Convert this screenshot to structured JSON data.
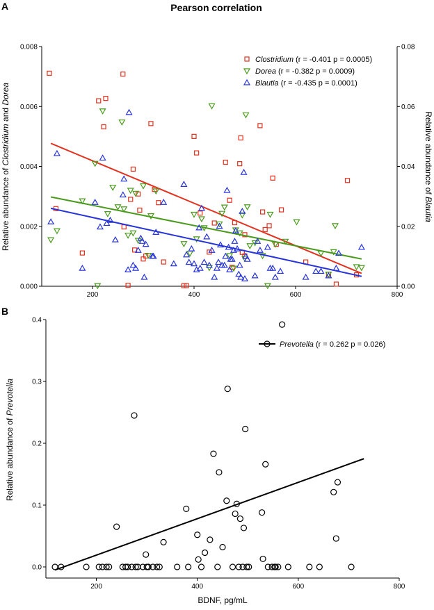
{
  "title": "Pearson correlation",
  "colors": {
    "clostridium": "#e3321f",
    "dorea": "#4a9a1c",
    "blautia": "#2734d8",
    "prevotella": "#000000"
  },
  "chart_data": [
    {
      "panel_label": "A",
      "type": "scatter",
      "xlim": [
        100,
        800
      ],
      "xticks": [
        200,
        400,
        600,
        800
      ],
      "ylim": [
        0,
        0.008
      ],
      "yticks": [
        "0.000",
        "0.002",
        "0.004",
        "0.006",
        "0.008"
      ],
      "ylim_right": [
        0,
        0.08
      ],
      "yticks_right": [
        "0.00",
        "0.02",
        "0.04",
        "0.06",
        "0.08"
      ],
      "ylabel_parts": [
        "Relative abundance of ",
        "Clostridium",
        " and ",
        "Dorea"
      ],
      "ylabel_right_parts": [
        "Relative abundance of ",
        "Blautia"
      ],
      "legend_position": "top-right",
      "series": [
        {
          "name": "Clostridium",
          "stats": "(r = -0.401  p = 0.0005)",
          "marker": "square",
          "axis": "left",
          "fit": [
            [
              118,
              0.00477
            ],
            [
              730,
              0.00043
            ]
          ],
          "points": [
            [
              115,
              0.00711
            ],
            [
              128,
              0.00259
            ],
            [
              180,
              0.00111
            ],
            [
              212,
              0.00619
            ],
            [
              222,
              0.00532
            ],
            [
              226,
              0.00627
            ],
            [
              260,
              0.00708
            ],
            [
              262,
              0.00198
            ],
            [
              270,
              3e-05
            ],
            [
              275,
              0.0029
            ],
            [
              280,
              0.00391
            ],
            [
              283,
              0.00121
            ],
            [
              290,
              0.00308
            ],
            [
              293,
              0.00254
            ],
            [
              300,
              0.00091
            ],
            [
              305,
              0.00101
            ],
            [
              315,
              0.00543
            ],
            [
              322,
              0.00323
            ],
            [
              330,
              0.00279
            ],
            [
              340,
              0.00081
            ],
            [
              380,
              2e-05
            ],
            [
              385,
              2e-05
            ],
            [
              400,
              0.005
            ],
            [
              405,
              0.00445
            ],
            [
              412,
              0.00244
            ],
            [
              430,
              0.00114
            ],
            [
              440,
              0.00211
            ],
            [
              462,
              0.00414
            ],
            [
              470,
              0.00287
            ],
            [
              475,
              0.00063
            ],
            [
              480,
              0.00212
            ],
            [
              490,
              0.00409
            ],
            [
              492,
              0.00495
            ],
            [
              495,
              0.00113
            ],
            [
              500,
              0.00172
            ],
            [
              500,
              0.00101
            ],
            [
              530,
              0.00536
            ],
            [
              535,
              0.00248
            ],
            [
              540,
              0.00189
            ],
            [
              548,
              0.00202
            ],
            [
              555,
              0.00361
            ],
            [
              562,
              0.0014
            ],
            [
              572,
              0.00255
            ],
            [
              620,
              0.00081
            ],
            [
              665,
              0.0004
            ],
            [
              680,
              7e-05
            ],
            [
              702,
              0.00353
            ],
            [
              720,
              0.00038
            ]
          ]
        },
        {
          "name": "Dorea",
          "stats": "(r = -0.382   p = 0.0009)",
          "marker": "triangle-down",
          "axis": "left",
          "fit": [
            [
              118,
              0.00298
            ],
            [
              730,
              0.00091
            ]
          ],
          "points": [
            [
              118,
              0.00155
            ],
            [
              130,
              0.00185
            ],
            [
              180,
              0.00285
            ],
            [
              205,
              0.0041
            ],
            [
              210,
              2e-05
            ],
            [
              220,
              0.00585
            ],
            [
              230,
              0.00242
            ],
            [
              240,
              0.0033
            ],
            [
              250,
              0.00265
            ],
            [
              258,
              0.00548
            ],
            [
              262,
              0.00258
            ],
            [
              270,
              0.0017
            ],
            [
              275,
              0.0032
            ],
            [
              280,
              0.00178
            ],
            [
              285,
              0.0031
            ],
            [
              290,
              0.00153
            ],
            [
              300,
              0.00335
            ],
            [
              310,
              0.00103
            ],
            [
              315,
              0.00235
            ],
            [
              325,
              0.00318
            ],
            [
              380,
              0.00142
            ],
            [
              392,
              0.0011
            ],
            [
              400,
              0.0024
            ],
            [
              405,
              0.00158
            ],
            [
              415,
              0.00225
            ],
            [
              420,
              0.00195
            ],
            [
              430,
              0.00062
            ],
            [
              435,
              0.00602
            ],
            [
              450,
              0.00208
            ],
            [
              455,
              0.00243
            ],
            [
              460,
              0.00264
            ],
            [
              470,
              0.00102
            ],
            [
              478,
              0.0006
            ],
            [
              482,
              0.00188
            ],
            [
              490,
              0.00178
            ],
            [
              495,
              0.00238
            ],
            [
              500,
              0.00093
            ],
            [
              502,
              0.00572
            ],
            [
              505,
              0.00265
            ],
            [
              510,
              0.00135
            ],
            [
              520,
              0.00145
            ],
            [
              535,
              0.00102
            ],
            [
              545,
              2e-05
            ],
            [
              550,
              0.0024
            ],
            [
              560,
              0.0014
            ],
            [
              580,
              0.0015
            ],
            [
              602,
              0.00215
            ],
            [
              650,
              0.0011
            ],
            [
              665,
              0.0004
            ],
            [
              675,
              0.00115
            ],
            [
              678,
              0.00202
            ],
            [
              720,
              0.00065
            ],
            [
              730,
              0.00062
            ]
          ]
        },
        {
          "name": "Blautia",
          "stats": "(r = -0.435  p = 0.0001)",
          "marker": "triangle-up",
          "axis": "right",
          "fit": [
            [
              118,
              0.026
            ],
            [
              730,
              0.0033
            ]
          ],
          "points": [
            [
              118,
              0.0215
            ],
            [
              130,
              0.0443
            ],
            [
              180,
              0.006
            ],
            [
              205,
              0.028
            ],
            [
              215,
              0.0198
            ],
            [
              220,
              0.0428
            ],
            [
              228,
              0.021
            ],
            [
              235,
              0.022
            ],
            [
              245,
              0.0155
            ],
            [
              260,
              0.0305
            ],
            [
              262,
              0.0358
            ],
            [
              270,
              0.0055
            ],
            [
              272,
              0.058
            ],
            [
              280,
              0.007
            ],
            [
              285,
              0.006
            ],
            [
              290,
              0.012
            ],
            [
              295,
              0.016
            ],
            [
              298,
              0.015
            ],
            [
              302,
              0.003
            ],
            [
              305,
              0.014
            ],
            [
              318,
              0.01
            ],
            [
              320,
              0.01
            ],
            [
              325,
              0.018
            ],
            [
              340,
              0.028
            ],
            [
              360,
              0.0075
            ],
            [
              380,
              0.034
            ],
            [
              385,
              0.0105
            ],
            [
              390,
              0.008
            ],
            [
              395,
              0.0125
            ],
            [
              400,
              0.0075
            ],
            [
              405,
              0.0055
            ],
            [
              410,
              0.0195
            ],
            [
              412,
              0.006
            ],
            [
              415,
              0.026
            ],
            [
              420,
              0.008
            ],
            [
              425,
              0.0165
            ],
            [
              430,
              0.007
            ],
            [
              435,
              0.012
            ],
            [
              440,
              0.003
            ],
            [
              445,
              0.006
            ],
            [
              448,
              0.008
            ],
            [
              450,
              0.02
            ],
            [
              452,
              0.0138
            ],
            [
              455,
              0.007
            ],
            [
              460,
              0.007
            ],
            [
              462,
              0.01
            ],
            [
              465,
              0.032
            ],
            [
              468,
              0.013
            ],
            [
              470,
              0.0055
            ],
            [
              472,
              0.009
            ],
            [
              475,
              0.009
            ],
            [
              478,
              0.012
            ],
            [
              480,
              0.015
            ],
            [
              482,
              0.0185
            ],
            [
              485,
              0.0125
            ],
            [
              488,
              0.004
            ],
            [
              490,
              0.007
            ],
            [
              492,
              0.003
            ],
            [
              495,
              0.025
            ],
            [
              498,
              0.038
            ],
            [
              500,
              0.0025
            ],
            [
              502,
              0.01
            ],
            [
              505,
              0.009
            ],
            [
              520,
              0.0035
            ],
            [
              525,
              0.015
            ],
            [
              530,
              0.012
            ],
            [
              545,
              0.013
            ],
            [
              550,
              0.006
            ],
            [
              555,
              0.006
            ],
            [
              560,
              0.003
            ],
            [
              570,
              0.005
            ],
            [
              620,
              0.003
            ],
            [
              640,
              0.005
            ],
            [
              650,
              0.005
            ],
            [
              665,
              0.0035
            ],
            [
              680,
              0.006
            ],
            [
              685,
              0.011
            ],
            [
              730,
              0.013
            ]
          ]
        }
      ]
    },
    {
      "panel_label": "B",
      "type": "scatter",
      "xlim": [
        100,
        800
      ],
      "xticks": [
        200,
        400,
        600,
        800
      ],
      "xlabel": "BDNF, pg/mL",
      "ylim": [
        0,
        0.4
      ],
      "yticks": [
        "0.0",
        "0.1",
        "0.2",
        "0.3",
        "0.4"
      ],
      "ylabel_parts": [
        "Relative abundance of ",
        "Prevotella"
      ],
      "legend_position": "top-right",
      "series": [
        {
          "name": "Prevotella",
          "stats": "(r = 0.262  p = 0.026)",
          "marker": "circle",
          "fit": [
            [
              118,
              -0.005
            ],
            [
              730,
              0.175
            ]
          ],
          "points": [
            [
              118,
              0
            ],
            [
              130,
              0
            ],
            [
              180,
              0
            ],
            [
              205,
              0
            ],
            [
              212,
              0
            ],
            [
              220,
              0
            ],
            [
              225,
              0
            ],
            [
              240,
              0.065
            ],
            [
              252,
              0
            ],
            [
              258,
              0
            ],
            [
              262,
              0
            ],
            [
              270,
              0
            ],
            [
              275,
              0.245
            ],
            [
              278,
              0
            ],
            [
              282,
              0
            ],
            [
              292,
              0
            ],
            [
              298,
              0.02
            ],
            [
              300,
              0
            ],
            [
              303,
              0
            ],
            [
              312,
              0
            ],
            [
              320,
              0
            ],
            [
              325,
              0
            ],
            [
              333,
              0.04
            ],
            [
              360,
              0
            ],
            [
              378,
              0.094
            ],
            [
              382,
              0
            ],
            [
              400,
              0.052
            ],
            [
              402,
              0.012
            ],
            [
              408,
              0
            ],
            [
              415,
              0.023
            ],
            [
              425,
              0.044
            ],
            [
              432,
              0.183
            ],
            [
              440,
              0
            ],
            [
              443,
              0.153
            ],
            [
              450,
              0.032
            ],
            [
              458,
              0.107
            ],
            [
              460,
              0.288
            ],
            [
              470,
              0
            ],
            [
              475,
              0.086
            ],
            [
              478,
              0.102
            ],
            [
              482,
              0
            ],
            [
              485,
              0.078
            ],
            [
              490,
              0
            ],
            [
              492,
              0.063
            ],
            [
              495,
              0.223
            ],
            [
              498,
              0
            ],
            [
              502,
              0
            ],
            [
              528,
              0.088
            ],
            [
              530,
              0.013
            ],
            [
              535,
              0.166
            ],
            [
              540,
              0
            ],
            [
              548,
              0
            ],
            [
              553,
              0
            ],
            [
              555,
              0
            ],
            [
              560,
              0
            ],
            [
              568,
              0.392
            ],
            [
              580,
              0
            ],
            [
              622,
              0
            ],
            [
              642,
              0
            ],
            [
              670,
              0.121
            ],
            [
              675,
              0.046
            ],
            [
              678,
              0.137
            ],
            [
              705,
              0
            ]
          ]
        }
      ]
    }
  ]
}
